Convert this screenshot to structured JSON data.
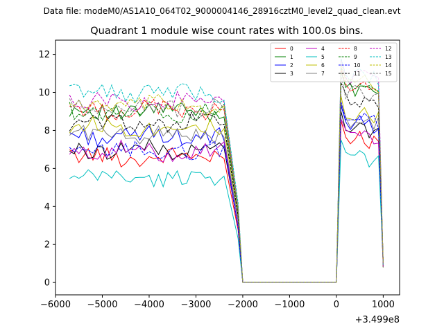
{
  "figure": {
    "suptitle": "Data file: modeM0/AS1A10_064T02_9000004146_28916cztM0_level2_quad_clean.evt"
  },
  "chart_data": {
    "type": "line",
    "title": "Quadrant 1 module wise count rates with 100.0s bins.",
    "xlabel": "",
    "ylabel": "",
    "x_offset_label": "+3.499e8",
    "xlim": [
      -6000,
      1350
    ],
    "ylim": [
      -0.65,
      12.75
    ],
    "xticks": [
      -6000,
      -5000,
      -4000,
      -3000,
      -2000,
      -1000,
      0,
      1000
    ],
    "yticks": [
      0,
      2,
      4,
      6,
      8,
      10,
      12
    ],
    "x_tick_labels": [
      "−6000",
      "−5000",
      "−4000",
      "−3000",
      "−2000",
      "−1000",
      "0",
      "1000"
    ],
    "y_tick_labels": [
      "0",
      "2",
      "4",
      "6",
      "8",
      "10",
      "12"
    ],
    "grid": false,
    "legend_position": "top-right",
    "legend_columns": 4,
    "segment_a": {
      "x_start": -5700,
      "x_step": 100,
      "count": 34
    },
    "segment_b": {
      "x": [
        0,
        100,
        200,
        300,
        400,
        500,
        600,
        700,
        800,
        900,
        1000
      ]
    },
    "series": [
      {
        "name": "0",
        "color": "#ff0000",
        "dash": "solid",
        "base": 6.6,
        "b_level": 7.6
      },
      {
        "name": "1",
        "color": "#008000",
        "dash": "solid",
        "base": 9.0,
        "b_level": 10.2
      },
      {
        "name": "2",
        "color": "#0000ff",
        "dash": "solid",
        "base": 7.7,
        "b_level": 8.4
      },
      {
        "name": "3",
        "color": "#000000",
        "dash": "solid",
        "base": 7.0,
        "b_level": 8.1
      },
      {
        "name": "4",
        "color": "#bf00bf",
        "dash": "solid",
        "base": 6.9,
        "b_level": 7.7
      },
      {
        "name": "5",
        "color": "#00bfbf",
        "dash": "solid",
        "base": 5.5,
        "b_level": 6.6
      },
      {
        "name": "6",
        "color": "#bfbf00",
        "dash": "solid",
        "base": 8.2,
        "b_level": 8.9
      },
      {
        "name": "7",
        "color": "#808080",
        "dash": "solid",
        "base": 7.8,
        "b_level": 8.5
      },
      {
        "name": "8",
        "color": "#ff0000",
        "dash": "dashed",
        "base": 9.1,
        "b_level": 10.3
      },
      {
        "name": "9",
        "color": "#008000",
        "dash": "dashed",
        "base": 9.0,
        "b_level": 10.4
      },
      {
        "name": "10",
        "color": "#0000ff",
        "dash": "dashed",
        "base": 6.9,
        "b_level": 8.6
      },
      {
        "name": "11",
        "color": "#000000",
        "dash": "dashed",
        "base": 8.4,
        "b_level": 9.6
      },
      {
        "name": "12",
        "color": "#bf00bf",
        "dash": "dashed",
        "base": 9.5,
        "b_level": 10.8
      },
      {
        "name": "13",
        "color": "#00bfbf",
        "dash": "dashed",
        "base": 10.0,
        "b_level": 10.9
      },
      {
        "name": "14",
        "color": "#bfbf00",
        "dash": "dashed",
        "base": 9.3,
        "b_level": 10.6
      },
      {
        "name": "15",
        "color": "#808080",
        "dash": "dashed",
        "base": 9.2,
        "b_level": 10.0
      }
    ]
  }
}
